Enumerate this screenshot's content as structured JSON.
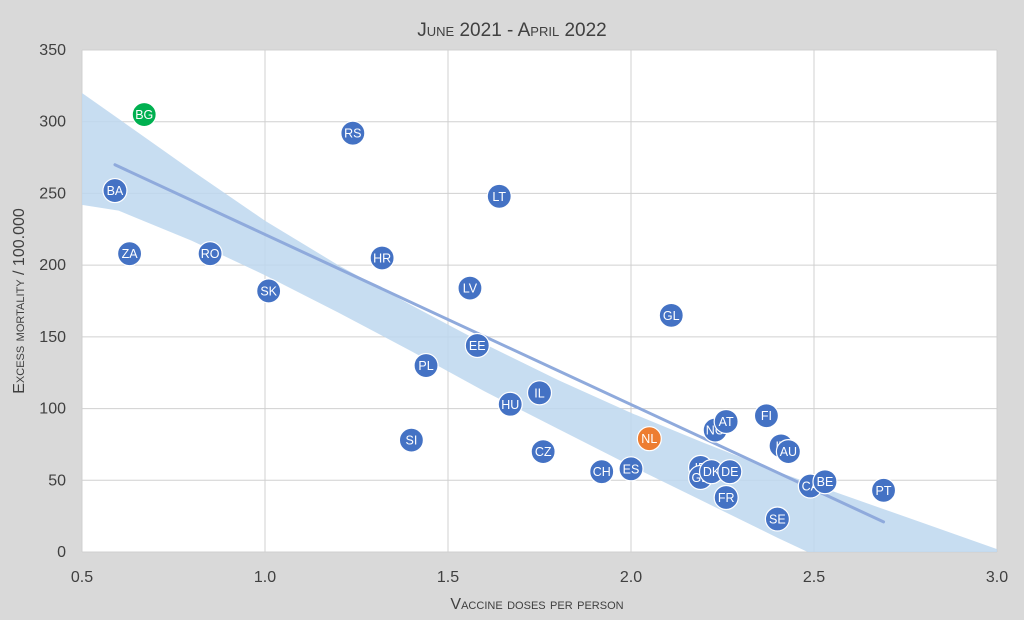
{
  "chart_data": {
    "type": "scatter",
    "title": "June 2021 - April 2022",
    "xlabel": "Vaccine doses per person",
    "ylabel": "Excess mortality / 100.000",
    "xlim": [
      0.5,
      3.0
    ],
    "ylim": [
      0,
      350
    ],
    "xticks": [
      "0.5",
      "1.0",
      "1.5",
      "2.0",
      "2.5",
      "3.0"
    ],
    "yticks": [
      "0",
      "50",
      "100",
      "150",
      "200",
      "250",
      "300",
      "350"
    ],
    "grid": true,
    "colors": {
      "default": "#4472c4",
      "highlight_green": "#00b050",
      "highlight_orange": "#ed7d31",
      "trend_line": "#8faadc",
      "confidence_band": "#bdd7ee",
      "background": "#d9d9d9",
      "plot_area": "#ffffff"
    },
    "trend_line": {
      "x": [
        0.59,
        2.69
      ],
      "y": [
        270,
        21
      ]
    },
    "confidence_band": {
      "x": [
        0.5,
        0.6,
        0.8,
        1.0,
        1.2,
        1.4,
        1.6,
        1.8,
        2.0,
        2.2,
        2.4,
        2.6,
        2.8,
        3.0
      ],
      "upper": [
        320,
        302,
        266,
        231,
        200,
        172,
        145,
        120,
        97,
        76,
        56,
        38,
        20,
        2
      ],
      "lower": [
        242,
        238,
        217,
        193,
        167,
        140,
        112,
        86,
        60,
        35,
        10,
        -14,
        -38,
        -62
      ]
    },
    "points": [
      {
        "label": "BG",
        "x": 0.67,
        "y": 305,
        "color": "#00b050"
      },
      {
        "label": "BA",
        "x": 0.59,
        "y": 252,
        "color": "#4472c4"
      },
      {
        "label": "ZA",
        "x": 0.63,
        "y": 208,
        "color": "#4472c4"
      },
      {
        "label": "RO",
        "x": 0.85,
        "y": 208,
        "color": "#4472c4"
      },
      {
        "label": "SK",
        "x": 1.01,
        "y": 182,
        "color": "#4472c4"
      },
      {
        "label": "RS",
        "x": 1.24,
        "y": 292,
        "color": "#4472c4"
      },
      {
        "label": "HR",
        "x": 1.32,
        "y": 205,
        "color": "#4472c4"
      },
      {
        "label": "SI",
        "x": 1.4,
        "y": 78,
        "color": "#4472c4"
      },
      {
        "label": "PL",
        "x": 1.44,
        "y": 130,
        "color": "#4472c4"
      },
      {
        "label": "LV",
        "x": 1.56,
        "y": 184,
        "color": "#4472c4"
      },
      {
        "label": "EE",
        "x": 1.58,
        "y": 144,
        "color": "#4472c4"
      },
      {
        "label": "LT",
        "x": 1.64,
        "y": 248,
        "color": "#4472c4"
      },
      {
        "label": "HU",
        "x": 1.67,
        "y": 103,
        "color": "#4472c4"
      },
      {
        "label": "IL",
        "x": 1.75,
        "y": 111,
        "color": "#4472c4"
      },
      {
        "label": "CZ",
        "x": 1.76,
        "y": 70,
        "color": "#4472c4"
      },
      {
        "label": "CH",
        "x": 1.92,
        "y": 56,
        "color": "#4472c4"
      },
      {
        "label": "ES",
        "x": 2.0,
        "y": 58,
        "color": "#4472c4"
      },
      {
        "label": "NL",
        "x": 2.05,
        "y": 79,
        "color": "#ed7d31"
      },
      {
        "label": "GL",
        "x": 2.11,
        "y": 165,
        "color": "#4472c4"
      },
      {
        "label": "IE",
        "x": 2.19,
        "y": 59,
        "color": "#4472c4"
      },
      {
        "label": "GB",
        "x": 2.19,
        "y": 52,
        "color": "#4472c4"
      },
      {
        "label": "DK",
        "x": 2.22,
        "y": 56,
        "color": "#4472c4"
      },
      {
        "label": "NO",
        "x": 2.23,
        "y": 85,
        "color": "#4472c4"
      },
      {
        "label": "AT",
        "x": 2.26,
        "y": 91,
        "color": "#4472c4"
      },
      {
        "label": "DE",
        "x": 2.27,
        "y": 56,
        "color": "#4472c4"
      },
      {
        "label": "FR",
        "x": 2.26,
        "y": 38,
        "color": "#4472c4"
      },
      {
        "label": "FI",
        "x": 2.37,
        "y": 95,
        "color": "#4472c4"
      },
      {
        "label": "SE",
        "x": 2.4,
        "y": 23,
        "color": "#4472c4"
      },
      {
        "label": "IT",
        "x": 2.41,
        "y": 74,
        "color": "#4472c4"
      },
      {
        "label": "AU",
        "x": 2.43,
        "y": 70,
        "color": "#4472c4"
      },
      {
        "label": "CA",
        "x": 2.49,
        "y": 46,
        "color": "#4472c4"
      },
      {
        "label": "BE",
        "x": 2.53,
        "y": 49,
        "color": "#4472c4"
      },
      {
        "label": "PT",
        "x": 2.69,
        "y": 43,
        "color": "#4472c4"
      }
    ]
  }
}
